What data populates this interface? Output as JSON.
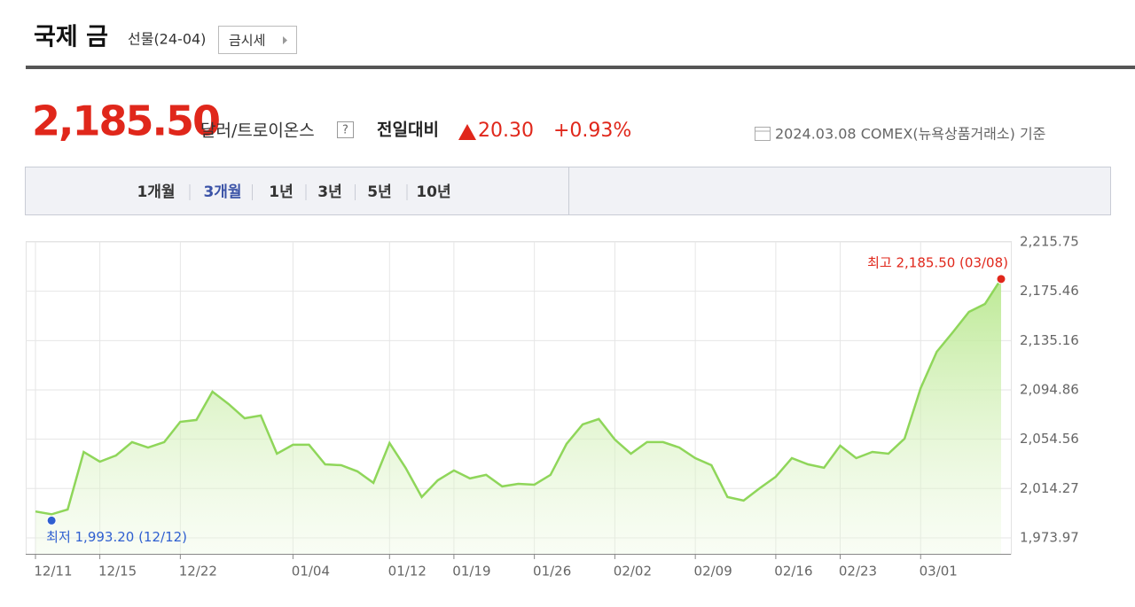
{
  "header": {
    "title": "국제 금",
    "subtitle": "선물(24-04)",
    "button": "금시세"
  },
  "price": {
    "value": "2,185.50",
    "unit": "달러/트로이온스",
    "help": "?",
    "change_label": "전일대비",
    "change": "20.30",
    "change_pct": "+0.93%",
    "basis": "2024.03.08 COMEX(뉴욕상품거래소) 기준"
  },
  "tabs": [
    "1개월",
    "3개월",
    "1년",
    "3년",
    "5년",
    "10년"
  ],
  "active_tab": 1,
  "chart_data": {
    "type": "area",
    "categories": [
      "12/11",
      null,
      null,
      null,
      "12/15",
      null,
      null,
      null,
      null,
      "12/22",
      null,
      null,
      null,
      null,
      null,
      null,
      "01/04",
      null,
      null,
      null,
      null,
      null,
      "01/12",
      null,
      null,
      null,
      "01/19",
      null,
      null,
      null,
      null,
      "01/26",
      null,
      null,
      null,
      null,
      "02/02",
      null,
      null,
      null,
      null,
      "02/09",
      null,
      null,
      null,
      null,
      "02/16",
      null,
      null,
      null,
      "02/23",
      null,
      null,
      null,
      null,
      "03/01",
      null,
      null,
      null,
      null,
      null
    ],
    "values": [
      1995.5,
      1993.2,
      1997.1,
      2044.2,
      2036.2,
      2041.3,
      2052.2,
      2047.8,
      2052.2,
      2068.8,
      2070.3,
      2093.4,
      2083.3,
      2071.7,
      2073.9,
      2042.7,
      2050.0,
      2050.0,
      2034.0,
      2033.3,
      2028.3,
      2018.9,
      2051.4,
      2031.2,
      2007.3,
      2021.0,
      2029.0,
      2022.5,
      2025.4,
      2016.0,
      2018.1,
      2017.4,
      2025.4,
      2050.7,
      2066.6,
      2071.0,
      2054.3,
      2042.7,
      2052.2,
      2052.2,
      2047.8,
      2039.1,
      2033.3,
      2007.3,
      2004.4,
      2014.5,
      2023.9,
      2039.1,
      2034.0,
      2031.2,
      2049.3,
      2039.1,
      2044.2,
      2042.7,
      2055.0,
      2096.3,
      2126.0,
      2141.9,
      2158.6,
      2165.1,
      2185.5
    ],
    "color": "#8fd65a",
    "ylim": [
      1960.9,
      2216.5
    ],
    "yticks": [
      {
        "value": 2215.75,
        "label": "2,215.75"
      },
      {
        "value": 2175.46,
        "label": "2,175.46"
      },
      {
        "value": 2135.16,
        "label": "2,135.16"
      },
      {
        "value": 2094.86,
        "label": "2,094.86"
      },
      {
        "value": 2054.56,
        "label": "2,054.56"
      },
      {
        "value": 2014.27,
        "label": "2,014.27"
      },
      {
        "value": 1973.97,
        "label": "1,973.97"
      }
    ],
    "grid": true,
    "annotations": {
      "high": "최고 2,185.50 (03/08)",
      "low": "최저 1,993.20 (12/12)"
    }
  }
}
